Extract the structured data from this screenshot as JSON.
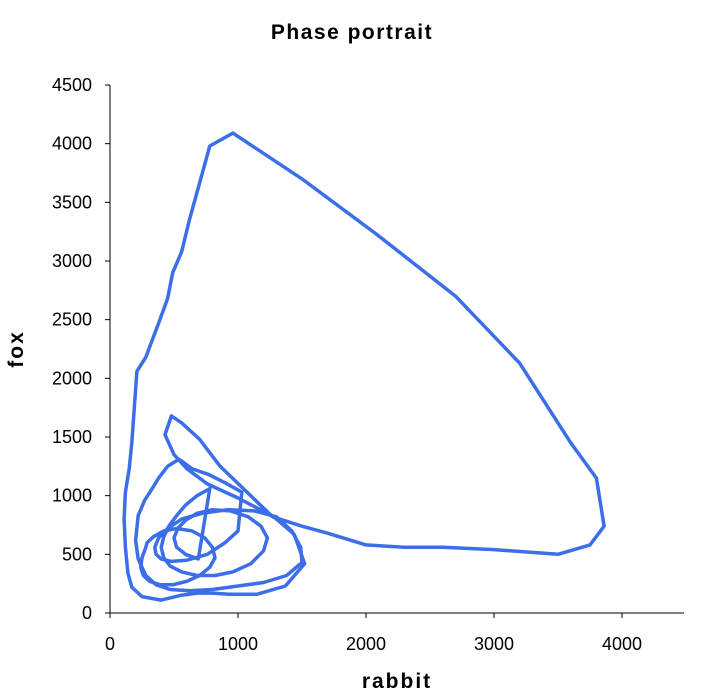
{
  "chart_data": {
    "type": "line",
    "title": "Phase portrait",
    "xlabel": "rabbit",
    "ylabel": "fox",
    "xlim": [
      0,
      4500
    ],
    "ylim": [
      0,
      4500
    ],
    "xticks": [
      "0",
      "1000",
      "2000",
      "3000",
      "4000"
    ],
    "yticks": [
      "0",
      "500",
      "1000",
      "1500",
      "2000",
      "2500",
      "3000",
      "3500",
      "4000",
      "4500"
    ],
    "grid": false,
    "legend": "none",
    "line_color": "#3b6ee8",
    "series": [
      {
        "x": [
          960,
          780,
          620,
          560,
          490,
          450,
          380,
          280,
          210,
          190,
          170,
          150,
          120,
          110,
          120,
          140,
          170,
          250,
          400,
          550,
          680,
          800,
          930,
          1150,
          1370,
          1520,
          1440,
          1280,
          1000,
          760,
          600,
          500,
          430,
          480,
          560,
          700,
          860,
          1080,
          1270,
          1500,
          1700,
          2000,
          2300,
          2600,
          3000,
          3500,
          3750,
          3860,
          3800,
          3600,
          3200,
          2700,
          2080,
          1500,
          960
        ],
        "y": [
          4090,
          3980,
          3350,
          3080,
          2900,
          2680,
          2470,
          2180,
          2060,
          1750,
          1450,
          1230,
          1030,
          800,
          560,
          340,
          220,
          140,
          110,
          150,
          170,
          170,
          160,
          160,
          230,
          420,
          670,
          820,
          980,
          1100,
          1230,
          1350,
          1520,
          1680,
          1620,
          1480,
          1250,
          1020,
          820,
          740,
          680,
          580,
          560,
          560,
          540,
          500,
          580,
          740,
          1150,
          1450,
          2130,
          2700,
          3230,
          3700,
          4090
        ]
      },
      {
        "x": [
          1030,
          900,
          770,
          640,
          540,
          450,
          380,
          330,
          270,
          220,
          200,
          220,
          280,
          360,
          470,
          620,
          800,
          1000,
          1200,
          1380,
          1500,
          1490,
          1420,
          1300,
          1130,
          920,
          720,
          560,
          450,
          380,
          350,
          360,
          400,
          480,
          600,
          760,
          900,
          1000,
          1030
        ],
        "y": [
          1030,
          1110,
          1180,
          1230,
          1310,
          1250,
          1150,
          1060,
          960,
          830,
          620,
          460,
          320,
          240,
          200,
          190,
          200,
          230,
          260,
          320,
          430,
          560,
          700,
          820,
          870,
          880,
          850,
          800,
          720,
          640,
          560,
          500,
          460,
          440,
          450,
          500,
          600,
          700,
          1030
        ]
      },
      {
        "x": [
          780,
          680,
          590,
          520,
          460,
          420,
          400,
          420,
          470,
          560,
          680,
          820,
          960,
          1100,
          1200,
          1230,
          1180,
          1080,
          940,
          800,
          680,
          590,
          530,
          500,
          520,
          590,
          690,
          780
        ],
        "y": [
          1060,
          1000,
          920,
          830,
          740,
          650,
          560,
          470,
          400,
          350,
          320,
          320,
          350,
          420,
          530,
          640,
          740,
          820,
          870,
          880,
          850,
          790,
          720,
          640,
          560,
          500,
          460,
          1060
        ]
      },
      {
        "x": [
          280,
          250,
          240,
          260,
          310,
          390,
          490,
          600,
          700,
          780,
          820,
          800,
          740,
          640,
          520,
          420,
          340,
          290,
          280
        ],
        "y": [
          560,
          470,
          390,
          320,
          270,
          240,
          240,
          270,
          320,
          390,
          470,
          560,
          640,
          700,
          720,
          700,
          650,
          600,
          560
        ]
      }
    ]
  }
}
